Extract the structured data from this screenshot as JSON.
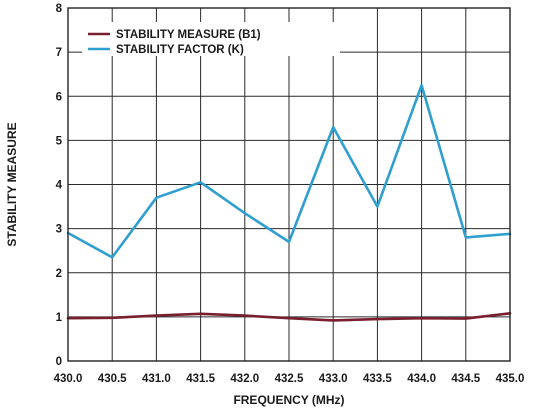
{
  "chart_data": {
    "type": "line",
    "title": "",
    "xlabel": "FREQUENCY (MHz)",
    "ylabel": "STABILITY MEASURE",
    "x": [
      430.0,
      430.5,
      431.0,
      431.5,
      432.0,
      432.5,
      433.0,
      433.5,
      434.0,
      434.5,
      435.0
    ],
    "x_tick_labels": [
      "430.0",
      "430.5",
      "431.0",
      "431.5",
      "432.0",
      "432.5",
      "433.0",
      "433.5",
      "434.0",
      "434.5",
      "435.0"
    ],
    "y_tick_labels": [
      "0",
      "1",
      "2",
      "3",
      "4",
      "5",
      "6",
      "7",
      "8"
    ],
    "xlim": [
      430.0,
      435.0
    ],
    "ylim": [
      0,
      8
    ],
    "grid": true,
    "legend_position": "top-left",
    "series": [
      {
        "name": "STABILITY MEASURE (B1)",
        "color": "#7a1f2e",
        "values": [
          0.97,
          0.98,
          1.03,
          1.07,
          1.03,
          0.97,
          0.92,
          0.95,
          0.97,
          0.96,
          1.08
        ]
      },
      {
        "name": "STABILITY FACTOR (K)",
        "color": "#2f9fd0",
        "values": [
          2.9,
          2.35,
          3.7,
          4.05,
          3.35,
          2.7,
          5.3,
          3.5,
          6.25,
          2.8,
          2.88
        ]
      }
    ]
  }
}
